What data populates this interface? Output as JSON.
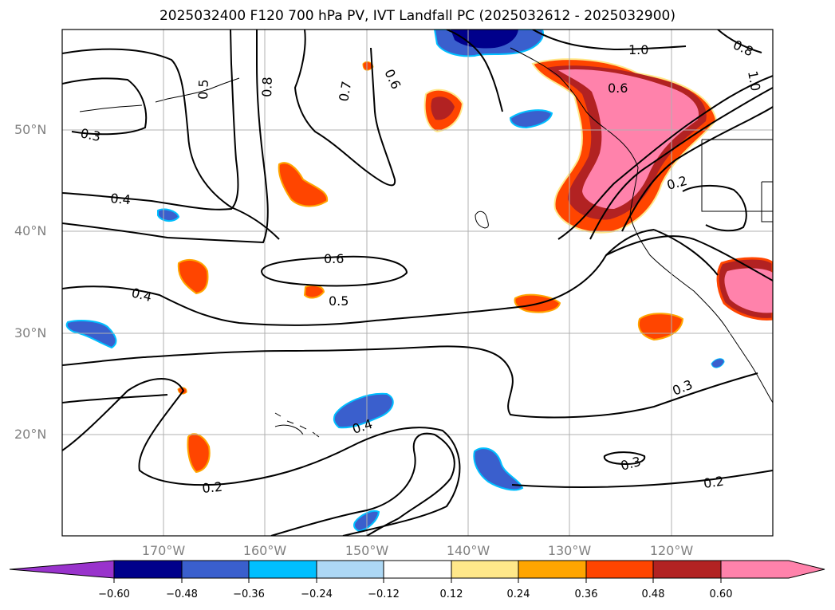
{
  "title": "2025032400 F120 700 hPa PV, IVT Landfall PC (2025032612 - 2025032900)",
  "lat_labels": [
    "50°N",
    "40°N",
    "30°N",
    "20°N"
  ],
  "lon_labels": [
    "170°W",
    "160°W",
    "150°W",
    "140°W",
    "130°W",
    "120°W"
  ],
  "contour_labels": [
    "1.0",
    "0.8",
    "1.0",
    "0.6",
    "0.7",
    "0.6",
    "0.5",
    "0.8",
    "0.3",
    "0.4",
    "0.2",
    "0.6",
    "0.5",
    "0.4",
    "0.3",
    "0.4",
    "0.2",
    "0.3",
    "0.2"
  ],
  "colorbar": {
    "ticks": [
      "−0.60",
      "−0.48",
      "−0.36",
      "−0.24",
      "−0.12",
      "0.12",
      "0.24",
      "0.36",
      "0.48",
      "0.60"
    ],
    "colors": [
      "#9933cc",
      "#00008b",
      "#3a5fcd",
      "#00bfff",
      "#add8f5",
      "#ffffff",
      "#ffe88a",
      "#ffa500",
      "#ff4500",
      "#b22222",
      "#ff82ab"
    ]
  }
}
